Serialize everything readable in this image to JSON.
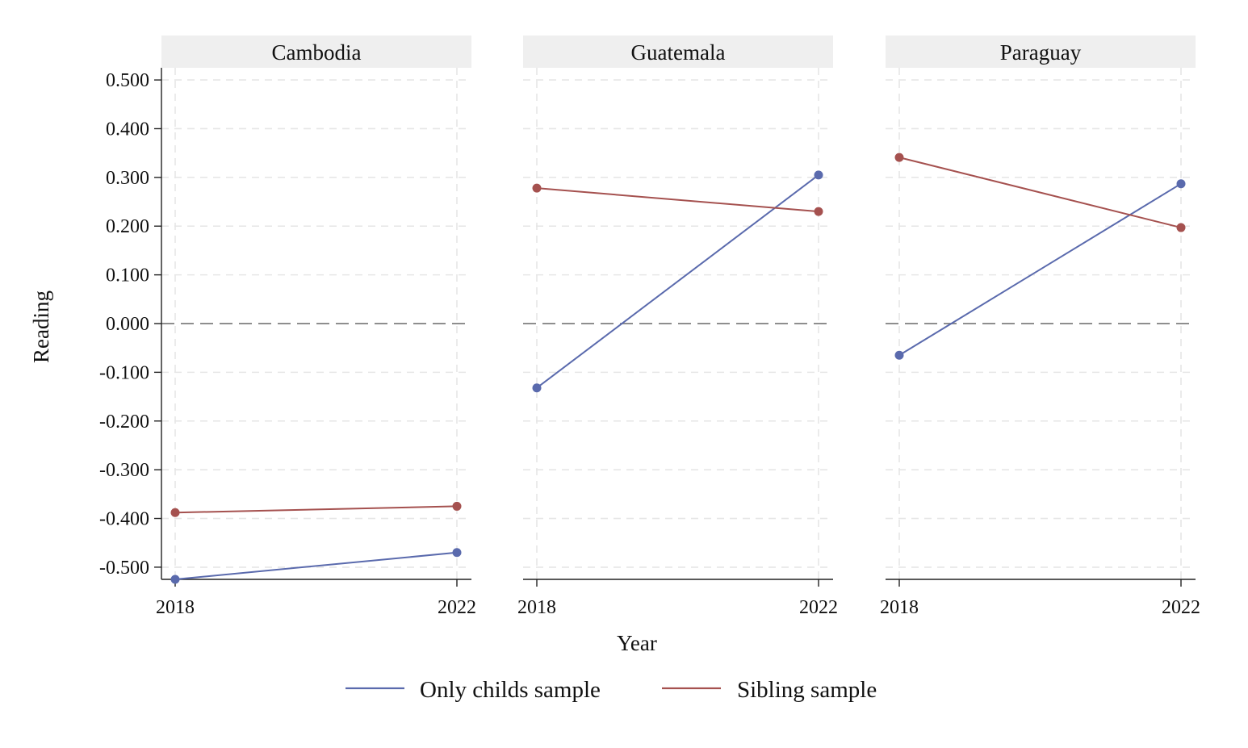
{
  "chart_data": {
    "type": "line",
    "ylabel": "Reading",
    "xlabel": "Year",
    "x": [
      2018,
      2022
    ],
    "x_tick_labels": [
      "2018",
      "2022"
    ],
    "ylim": [
      -0.525,
      0.525
    ],
    "y_ticks": [
      0.5,
      0.4,
      0.3,
      0.2,
      0.1,
      0.0,
      -0.1,
      -0.2,
      -0.3,
      -0.4,
      -0.5
    ],
    "y_tick_labels": [
      "0.500",
      "0.400",
      "0.300",
      "0.200",
      "0.100",
      "0.000",
      "-0.100",
      "-0.200",
      "-0.300",
      "-0.400",
      "-0.500"
    ],
    "reference_line_y": 0.0,
    "grid": true,
    "legend_position": "bottom",
    "series_colors": {
      "Only childs sample": "#5a6aad",
      "Sibling sample": "#a5514f"
    },
    "legend": [
      "Only childs sample",
      "Sibling sample"
    ],
    "panels": [
      {
        "title": "Cambodia",
        "series": [
          {
            "name": "Only childs sample",
            "values": [
              -0.525,
              -0.47
            ]
          },
          {
            "name": "Sibling sample",
            "values": [
              -0.388,
              -0.375
            ]
          }
        ]
      },
      {
        "title": "Guatemala",
        "series": [
          {
            "name": "Only childs sample",
            "values": [
              -0.132,
              0.305
            ]
          },
          {
            "name": "Sibling sample",
            "values": [
              0.278,
              0.23
            ]
          }
        ]
      },
      {
        "title": "Paraguay",
        "series": [
          {
            "name": "Only childs sample",
            "values": [
              -0.065,
              0.287
            ]
          },
          {
            "name": "Sibling sample",
            "values": [
              0.341,
              0.197
            ]
          }
        ]
      }
    ]
  }
}
